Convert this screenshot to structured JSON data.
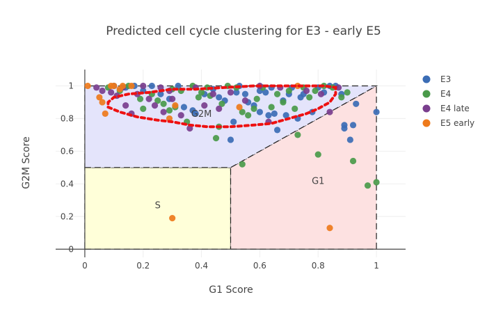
{
  "chart_data": {
    "type": "scatter",
    "title": "Predicted cell cycle clustering for E3 - early E5",
    "xlabel": "G1 Score",
    "ylabel": "G2M Score",
    "xlim": [
      -0.1,
      1.1
    ],
    "ylim": [
      -0.05,
      1.1
    ],
    "x_ticks": [
      0,
      0.2,
      0.4,
      0.6,
      0.8,
      1
    ],
    "y_ticks": [
      0,
      0.2,
      0.4,
      0.6,
      0.8,
      1
    ],
    "x_tick_labels": [
      "0",
      "0.2",
      "0.4",
      "0.6",
      "0.8",
      "1"
    ],
    "y_tick_labels": [
      "0",
      "0.2",
      "0.4",
      "0.6",
      "0.8",
      "1"
    ],
    "grid": true,
    "legend_position": "top-right",
    "regions": [
      {
        "label": "S",
        "color": "#ffffd9",
        "label_at": [
          0.25,
          0.25
        ],
        "polygon": [
          [
            0,
            0
          ],
          [
            0.5,
            0
          ],
          [
            0.5,
            0.5
          ],
          [
            0,
            0.5
          ]
        ]
      },
      {
        "label": "G1",
        "color": "#fde1e1",
        "label_at": [
          0.8,
          0.4
        ],
        "polygon": [
          [
            0.5,
            0
          ],
          [
            1,
            0
          ],
          [
            1,
            1
          ],
          [
            0.5,
            0.5
          ]
        ]
      },
      {
        "label": "G2M",
        "color": "#e4e4fb",
        "label_at": [
          0.4,
          0.81
        ],
        "polygon": [
          [
            0,
            0.5
          ],
          [
            0.5,
            0.5
          ],
          [
            1,
            1
          ],
          [
            0,
            1
          ]
        ]
      }
    ],
    "series": [
      {
        "name": "E3",
        "color": "#3b6db5",
        "points": [
          [
            0.1,
            1.0
          ],
          [
            0.14,
            0.99
          ],
          [
            0.17,
            1.0
          ],
          [
            0.2,
            0.97
          ],
          [
            0.23,
            1.0
          ],
          [
            0.26,
            0.95
          ],
          [
            0.29,
            0.92
          ],
          [
            0.32,
            1.0
          ],
          [
            0.34,
            0.87
          ],
          [
            0.37,
            0.85
          ],
          [
            0.38,
            0.83
          ],
          [
            0.41,
            0.95
          ],
          [
            0.44,
            0.98
          ],
          [
            0.46,
            0.93
          ],
          [
            0.48,
            0.91
          ],
          [
            0.5,
            0.67
          ],
          [
            0.51,
            0.78
          ],
          [
            0.52,
            0.96
          ],
          [
            0.53,
            1.0
          ],
          [
            0.55,
            0.95
          ],
          [
            0.56,
            0.9
          ],
          [
            0.58,
            0.88
          ],
          [
            0.6,
            0.84
          ],
          [
            0.62,
            0.96
          ],
          [
            0.63,
            0.82
          ],
          [
            0.65,
            0.83
          ],
          [
            0.66,
            0.73
          ],
          [
            0.68,
            0.91
          ],
          [
            0.69,
            0.82
          ],
          [
            0.71,
            0.99
          ],
          [
            0.73,
            0.8
          ],
          [
            0.74,
            0.93
          ],
          [
            0.75,
            0.95
          ],
          [
            0.78,
            0.84
          ],
          [
            0.8,
            0.99
          ],
          [
            0.82,
            0.96
          ],
          [
            0.84,
            1.0
          ],
          [
            0.86,
            1.0
          ],
          [
            0.88,
            0.95
          ],
          [
            0.89,
            0.76
          ],
          [
            0.89,
            0.74
          ],
          [
            0.91,
            0.67
          ],
          [
            0.92,
            0.76
          ],
          [
            0.93,
            0.89
          ],
          [
            1.0,
            0.84
          ],
          [
            0.6,
            0.97
          ],
          [
            0.64,
            0.99
          ],
          [
            0.7,
            0.95
          ]
        ]
      },
      {
        "name": "E4",
        "color": "#4a9a4a",
        "points": [
          [
            0.08,
            0.99
          ],
          [
            0.12,
            0.97
          ],
          [
            0.15,
            1.0
          ],
          [
            0.19,
            0.92
          ],
          [
            0.2,
            0.86
          ],
          [
            0.23,
            0.95
          ],
          [
            0.25,
            0.91
          ],
          [
            0.27,
            0.89
          ],
          [
            0.29,
            0.85
          ],
          [
            0.31,
            0.87
          ],
          [
            0.33,
            0.97
          ],
          [
            0.35,
            0.78
          ],
          [
            0.37,
            1.0
          ],
          [
            0.39,
            0.93
          ],
          [
            0.4,
            0.96
          ],
          [
            0.42,
            0.99
          ],
          [
            0.45,
            0.68
          ],
          [
            0.46,
            0.75
          ],
          [
            0.47,
            0.89
          ],
          [
            0.49,
            1.0
          ],
          [
            0.54,
            0.84
          ],
          [
            0.54,
            0.52
          ],
          [
            0.56,
            0.82
          ],
          [
            0.58,
            0.86
          ],
          [
            0.59,
            0.92
          ],
          [
            0.61,
            0.99
          ],
          [
            0.64,
            0.87
          ],
          [
            0.66,
            0.95
          ],
          [
            0.68,
            0.9
          ],
          [
            0.7,
            0.97
          ],
          [
            0.72,
            0.86
          ],
          [
            0.73,
            0.7
          ],
          [
            0.75,
            0.99
          ],
          [
            0.77,
            0.93
          ],
          [
            0.79,
            0.97
          ],
          [
            0.8,
            0.58
          ],
          [
            0.82,
            1.0
          ],
          [
            0.85,
            0.99
          ],
          [
            0.88,
            0.93
          ],
          [
            0.9,
            0.96
          ],
          [
            0.92,
            0.54
          ],
          [
            0.97,
            0.39
          ],
          [
            1.0,
            0.41
          ],
          [
            0.3,
            0.98
          ],
          [
            0.43,
            0.94
          ],
          [
            0.52,
            0.99
          ]
        ]
      },
      {
        "name": "E4 late",
        "color": "#7a3e8e",
        "points": [
          [
            0.04,
            0.99
          ],
          [
            0.06,
            0.97
          ],
          [
            0.09,
            0.96
          ],
          [
            0.11,
            0.94
          ],
          [
            0.13,
            0.99
          ],
          [
            0.14,
            0.88
          ],
          [
            0.16,
            0.83
          ],
          [
            0.18,
            0.95
          ],
          [
            0.2,
            1.0
          ],
          [
            0.22,
            0.92
          ],
          [
            0.24,
            0.88
          ],
          [
            0.27,
            0.84
          ],
          [
            0.29,
            0.97
          ],
          [
            0.3,
            0.92
          ],
          [
            0.33,
            0.82
          ],
          [
            0.36,
            0.74
          ],
          [
            0.38,
            0.99
          ],
          [
            0.41,
            0.88
          ],
          [
            0.44,
            0.95
          ],
          [
            0.46,
            0.86
          ],
          [
            0.5,
            0.96
          ],
          [
            0.55,
            0.91
          ],
          [
            0.6,
            1.0
          ],
          [
            0.63,
            0.78
          ],
          [
            0.67,
            0.99
          ],
          [
            0.76,
            0.97
          ],
          [
            0.81,
            0.95
          ],
          [
            0.84,
            0.84
          ],
          [
            0.87,
            0.99
          ],
          [
            0.26,
            0.99
          ]
        ]
      },
      {
        "name": "E5 early",
        "color": "#ee7a1b",
        "points": [
          [
            0.01,
            1.0
          ],
          [
            0.05,
            0.93
          ],
          [
            0.06,
            0.9
          ],
          [
            0.07,
            0.83
          ],
          [
            0.09,
            1.0
          ],
          [
            0.1,
            1.0
          ],
          [
            0.13,
            1.0
          ],
          [
            0.16,
            1.0
          ],
          [
            0.29,
            0.8
          ],
          [
            0.31,
            0.88
          ],
          [
            0.3,
            0.19
          ],
          [
            0.53,
            0.87
          ],
          [
            0.73,
            1.0
          ],
          [
            0.84,
            0.13
          ],
          [
            0.12,
            0.98
          ]
        ]
      }
    ],
    "trend_curve": {
      "color": "#ee1111",
      "points": [
        [
          0.08,
          0.87
        ],
        [
          0.12,
          0.84
        ],
        [
          0.18,
          0.81
        ],
        [
          0.25,
          0.79
        ],
        [
          0.3,
          0.78
        ],
        [
          0.36,
          0.76
        ],
        [
          0.42,
          0.75
        ],
        [
          0.5,
          0.75
        ],
        [
          0.58,
          0.76
        ],
        [
          0.64,
          0.77
        ],
        [
          0.7,
          0.8
        ],
        [
          0.76,
          0.83
        ],
        [
          0.8,
          0.86
        ],
        [
          0.84,
          0.9
        ],
        [
          0.86,
          0.95
        ],
        [
          0.86,
          0.99
        ],
        [
          0.82,
          1.0
        ],
        [
          0.7,
          1.0
        ],
        [
          0.58,
          1.0
        ],
        [
          0.48,
          0.99
        ],
        [
          0.38,
          0.98
        ],
        [
          0.3,
          0.98
        ],
        [
          0.22,
          0.96
        ],
        [
          0.15,
          0.95
        ],
        [
          0.1,
          0.93
        ],
        [
          0.08,
          0.9
        ],
        [
          0.08,
          0.87
        ]
      ]
    }
  }
}
